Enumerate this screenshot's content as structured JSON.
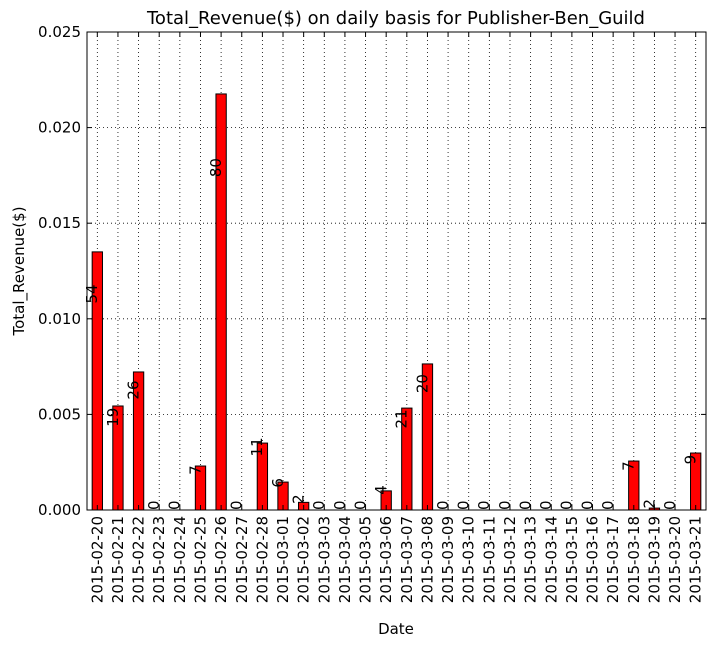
{
  "chart_data": {
    "type": "bar",
    "title": "Total_Revenue($) on daily basis for Publisher-Ben_Guild",
    "xlabel": "Date",
    "ylabel": "Total_Revenue($)",
    "categories": [
      "2015-02-20",
      "2015-02-21",
      "2015-02-22",
      "2015-02-23",
      "2015-02-24",
      "2015-02-25",
      "2015-02-26",
      "2015-02-27",
      "2015-02-28",
      "2015-03-01",
      "2015-03-02",
      "2015-03-03",
      "2015-03-04",
      "2015-03-05",
      "2015-03-06",
      "2015-03-07",
      "2015-03-08",
      "2015-03-09",
      "2015-03-10",
      "2015-03-11",
      "2015-03-12",
      "2015-03-13",
      "2015-03-14",
      "2015-03-15",
      "2015-03-16",
      "2015-03-17",
      "2015-03-18",
      "2015-03-19",
      "2015-03-20",
      "2015-03-21"
    ],
    "values": [
      0.0135,
      0.00544,
      0.00722,
      0,
      0,
      0.0023,
      0.02176,
      0,
      0.0035,
      0.00146,
      0.0004,
      0,
      0,
      0,
      0.001,
      0.00533,
      0.00764,
      0,
      0,
      0,
      0,
      0,
      0,
      0,
      0,
      0,
      0.00256,
      0.0001,
      0,
      0.00298
    ],
    "annotations": [
      "54",
      "19",
      "26",
      "0",
      "0",
      "7",
      "80",
      "0",
      "11",
      "6",
      "2",
      "0",
      "0",
      "0",
      "4",
      "21",
      "20",
      "0",
      "0",
      "0",
      "0",
      "0",
      "0",
      "0",
      "0",
      "0",
      "7",
      "2",
      "0",
      "9"
    ],
    "color": "#ff0000",
    "ylim": [
      0,
      0.025
    ],
    "yticks": [
      {
        "value": 0,
        "label": "0.000"
      },
      {
        "value": 0.005,
        "label": "0.005"
      },
      {
        "value": 0.01,
        "label": "0.010"
      },
      {
        "value": 0.015,
        "label": "0.015"
      },
      {
        "value": 0.02,
        "label": "0.020"
      },
      {
        "value": 0.025,
        "label": "0.025"
      }
    ],
    "grid": true
  }
}
